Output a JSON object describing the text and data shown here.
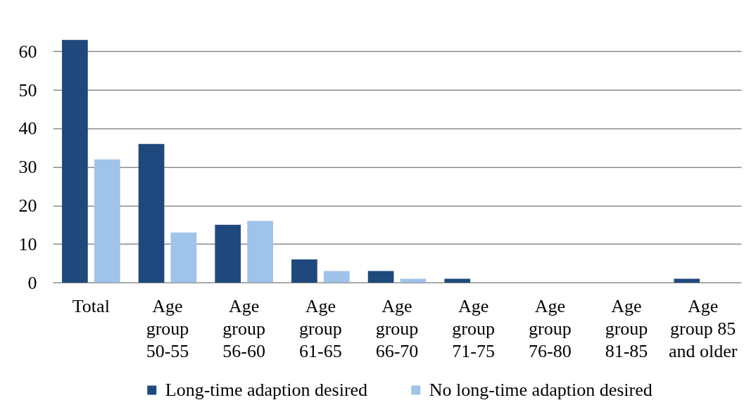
{
  "chart_data": {
    "type": "bar",
    "categories": [
      "Total",
      "Age group 50-55",
      "Age group 56-60",
      "Age group 61-65",
      "Age group 66-70",
      "Age group 71-75",
      "Age group 76-80",
      "Age group 81-85",
      "Age group 85 and older"
    ],
    "series": [
      {
        "name": "Long-time adaption desired",
        "color": "#1f497d",
        "values": [
          63,
          36,
          15,
          6,
          3,
          1,
          0,
          0,
          1
        ]
      },
      {
        "name": "No long-time adaption desired",
        "color": "#9fc3e9",
        "values": [
          32,
          13,
          16,
          3,
          1,
          0,
          0,
          0,
          0
        ]
      }
    ],
    "ylim": [
      0,
      63
    ],
    "yticks": [
      0,
      10,
      20,
      30,
      40,
      50,
      60
    ],
    "grid": "y",
    "legend": "bottom"
  }
}
